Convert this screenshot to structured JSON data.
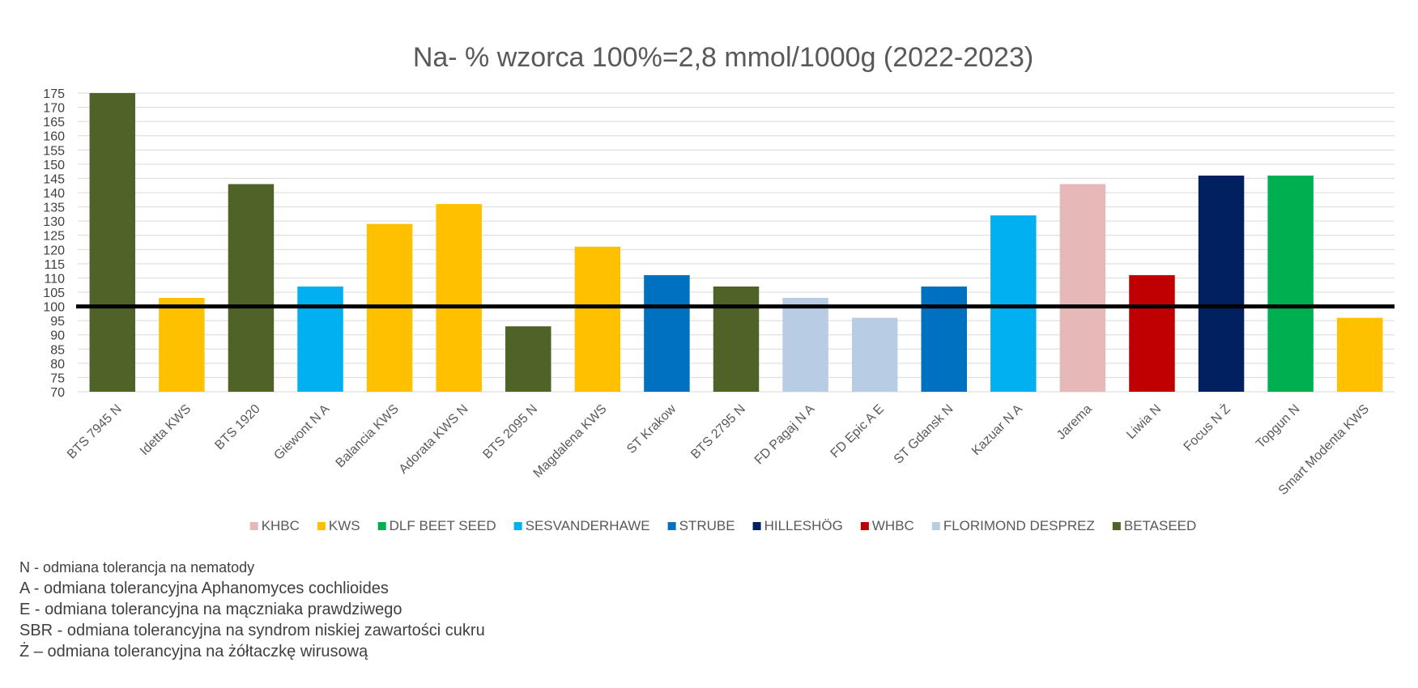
{
  "chart_data": {
    "type": "bar",
    "title": "Na- % wzorca 100%=2,8 mmol/1000g (2022-2023)",
    "xlabel": "",
    "ylabel": "",
    "ylim": [
      70,
      175
    ],
    "ytick_step": 5,
    "grid": true,
    "legend_position": "bottom",
    "reference_line": 100,
    "categories": [
      "BTS 7945 N",
      "Idetta KWS",
      "BTS 1920",
      "Giewont N A",
      "Balancia KWS",
      "Adorata KWS N",
      "BTS 2095 N",
      "Magdalena KWS",
      "ST Krakow",
      "BTS 2795 N",
      "FD Pagaj N A",
      "FD Epic A E",
      "ST Gdansk N",
      "Kazuar N A",
      "Jarema",
      "Liwia N",
      "Focus N Ż",
      "Topgun N",
      "Smart Modenta KWS"
    ],
    "values": [
      175,
      103,
      143,
      107,
      129,
      136,
      93,
      121,
      111,
      107,
      103,
      96,
      107,
      132,
      143,
      111,
      146,
      146,
      96
    ],
    "bar_groups": [
      "BETASEED",
      "KWS",
      "BETASEED",
      "SESVANDERHAWE",
      "KWS",
      "KWS",
      "BETASEED",
      "KWS",
      "STRUBE",
      "BETASEED",
      "FLORIMOND DESPREZ",
      "FLORIMOND DESPREZ",
      "STRUBE",
      "SESVANDERHAWE",
      "KHBC",
      "WHBC",
      "HILLESHÖG",
      "DLF BEET SEED",
      "KWS"
    ],
    "legend": [
      {
        "name": "KHBC",
        "color": "#E6B9B8"
      },
      {
        "name": "KWS",
        "color": "#FFC000"
      },
      {
        "name": "DLF BEET SEED",
        "color": "#00B050"
      },
      {
        "name": "SESVANDERHAWE",
        "color": "#00B0F0"
      },
      {
        "name": "STRUBE",
        "color": "#0070C0"
      },
      {
        "name": "HILLESHÖG",
        "color": "#002060"
      },
      {
        "name": "WHBC",
        "color": "#C00000"
      },
      {
        "name": "FLORIMOND DESPREZ",
        "color": "#B8CCE4"
      },
      {
        "name": "BETASEED",
        "color": "#4F6228"
      }
    ]
  },
  "notes": [
    "N - odmiana tolerancja na nematody",
    "A - odmiana tolerancyjna Aphanomyces cochlioides",
    "E - odmiana tolerancyjna na mączniaka prawdziwego",
    "SBR - odmiana tolerancyjna na syndrom niskiej zawartości cukru",
    "Ż – odmiana tolerancyjna na żółtaczkę wirusową"
  ]
}
